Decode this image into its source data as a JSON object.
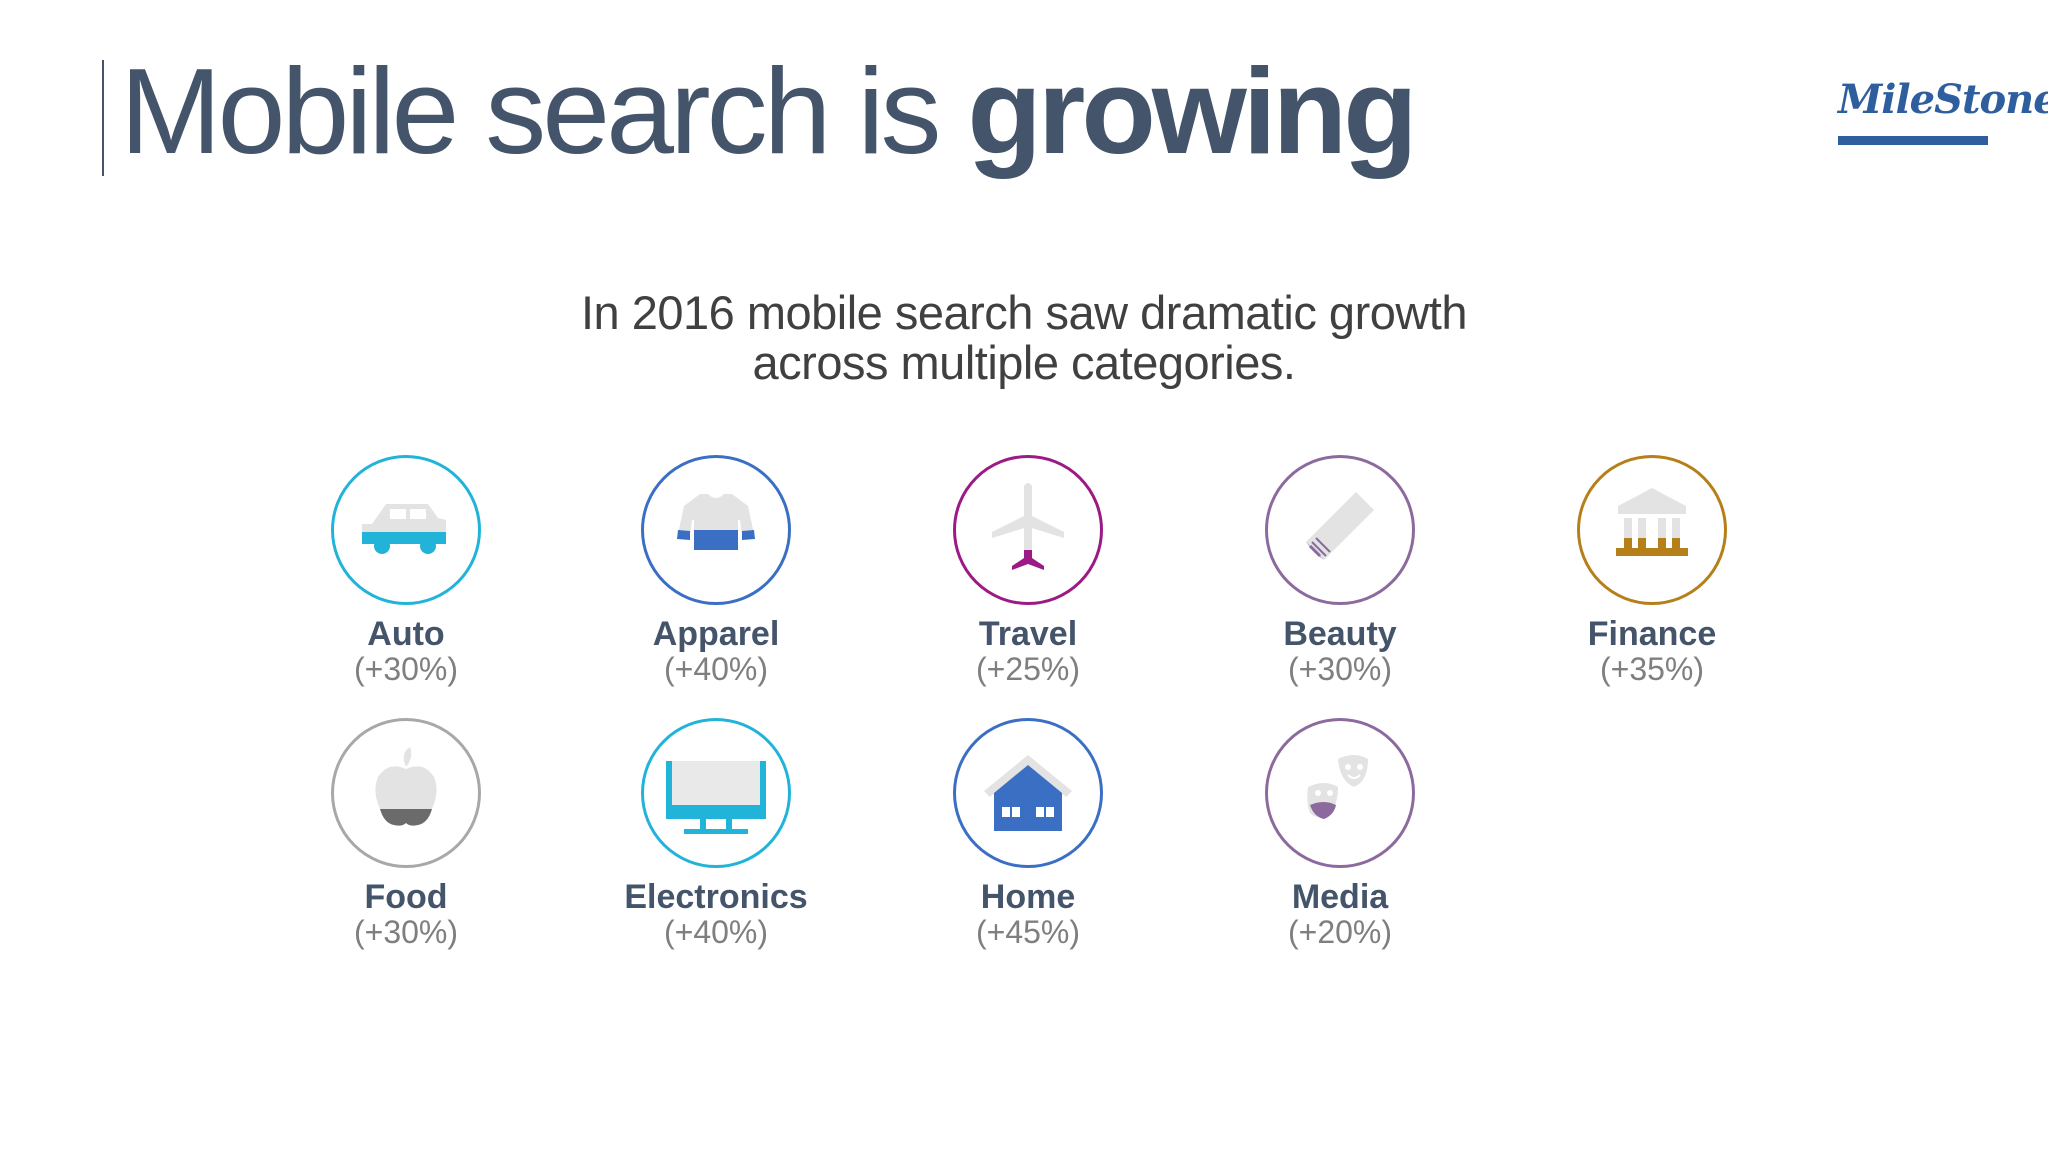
{
  "slide": {
    "title_regular": "Mobile search is ",
    "title_bold": "growing",
    "logo_text": "MileStone",
    "subtitle_line1": "In 2016 mobile search saw dramatic growth",
    "subtitle_line2": "across multiple categories."
  },
  "categories": [
    {
      "name": "Auto",
      "change": "(+30%)",
      "icon": "car-icon",
      "color": "#21b3d8"
    },
    {
      "name": "Apparel",
      "change": "(+40%)",
      "icon": "sweater-icon",
      "color": "#3a6fc4"
    },
    {
      "name": "Travel",
      "change": "(+25%)",
      "icon": "airplane-icon",
      "color": "#9b1a86"
    },
    {
      "name": "Beauty",
      "change": "(+30%)",
      "icon": "comb-icon",
      "color": "#8c6a9e"
    },
    {
      "name": "Finance",
      "change": "(+35%)",
      "icon": "bank-icon",
      "color": "#b5801a"
    },
    {
      "name": "Food",
      "change": "(+30%)",
      "icon": "apple-icon",
      "color": "#a8a8a8"
    },
    {
      "name": "Electronics",
      "change": "(+40%)",
      "icon": "tv-icon",
      "color": "#21b3d8"
    },
    {
      "name": "Home",
      "change": "(+45%)",
      "icon": "house-icon",
      "color": "#3a6fc4"
    },
    {
      "name": "Media",
      "change": "(+20%)",
      "icon": "theater-masks-icon",
      "color": "#8c6a9e"
    }
  ]
}
